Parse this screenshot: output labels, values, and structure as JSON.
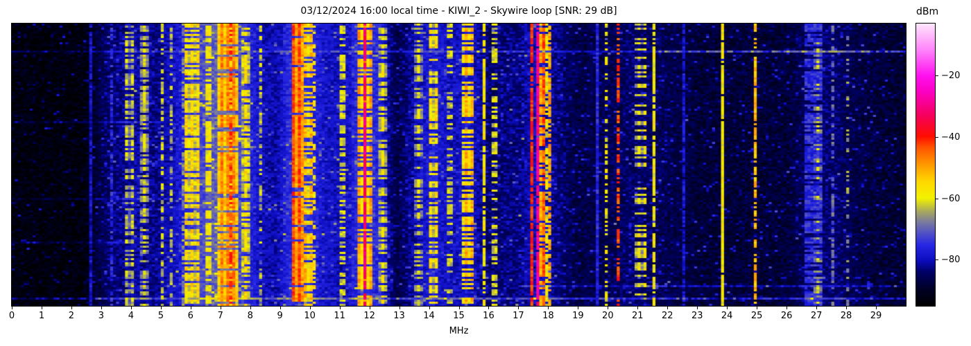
{
  "title": "03/12/2024 16:00 local time - KIWI_2 - Skywire loop [SNR: 29 dB]",
  "chart_data": {
    "type": "heatmap",
    "subtype": "waterfall-spectrogram",
    "title": "03/12/2024 16:00 local time - KIWI_2 - Skywire loop [SNR: 29 dB]",
    "xlabel": "MHz",
    "ylabel": "",
    "x_range": [
      0,
      30
    ],
    "x_ticks": [
      0,
      1,
      2,
      3,
      4,
      5,
      6,
      7,
      8,
      9,
      10,
      11,
      12,
      13,
      14,
      15,
      16,
      17,
      18,
      19,
      20,
      21,
      22,
      23,
      24,
      25,
      26,
      27,
      28,
      29
    ],
    "y_axis_note": "time (waterfall rows, unlabeled)",
    "grid": false,
    "legend": "none",
    "colorbar": {
      "label": "dBm",
      "ticks": [
        {
          "label": "−20",
          "value": -20
        },
        {
          "label": "−40",
          "value": -40
        },
        {
          "label": "−60",
          "value": -60
        },
        {
          "label": "−80",
          "value": -80
        }
      ],
      "range": [
        -95,
        -3
      ],
      "stops": [
        [
          0.0,
          "#000000"
        ],
        [
          0.06,
          "#000026"
        ],
        [
          0.12,
          "#000066"
        ],
        [
          0.163,
          "#0d0dc0"
        ],
        [
          0.215,
          "#2626e4"
        ],
        [
          0.26,
          "#5353c4"
        ],
        [
          0.3,
          "#7e7e9a"
        ],
        [
          0.335,
          "#a8a85e"
        ],
        [
          0.36,
          "#cfcf2a"
        ],
        [
          0.382,
          "#f2f200"
        ],
        [
          0.44,
          "#ffd800"
        ],
        [
          0.5,
          "#ff9900"
        ],
        [
          0.56,
          "#ff5500"
        ],
        [
          0.6,
          "#ff0d00"
        ],
        [
          0.68,
          "#f50063"
        ],
        [
          0.76,
          "#fb00c4"
        ],
        [
          0.815,
          "#ff10f0"
        ],
        [
          0.9,
          "#ff7cfa"
        ],
        [
          1.0,
          "#ffe6fc"
        ]
      ]
    },
    "noise_floor_anchors_mhz_dbm": [
      [
        0.0,
        -93
      ],
      [
        2.4,
        -93
      ],
      [
        2.7,
        -90
      ],
      [
        3.1,
        -85
      ],
      [
        3.6,
        -83
      ],
      [
        4.1,
        -81
      ],
      [
        4.8,
        -83
      ],
      [
        5.5,
        -79
      ],
      [
        6.0,
        -74
      ],
      [
        6.8,
        -70
      ],
      [
        7.3,
        -69
      ],
      [
        7.8,
        -74
      ],
      [
        8.4,
        -80
      ],
      [
        8.9,
        -81
      ],
      [
        9.3,
        -75
      ],
      [
        9.9,
        -74
      ],
      [
        10.5,
        -79
      ],
      [
        11.2,
        -80
      ],
      [
        11.8,
        -73
      ],
      [
        12.4,
        -77
      ],
      [
        12.9,
        -87
      ],
      [
        13.5,
        -81
      ],
      [
        14.1,
        -77
      ],
      [
        14.8,
        -80
      ],
      [
        15.3,
        -78
      ],
      [
        16.0,
        -84
      ],
      [
        17.0,
        -83
      ],
      [
        17.7,
        -79
      ],
      [
        18.3,
        -83
      ],
      [
        19.0,
        -87
      ],
      [
        20.0,
        -86
      ],
      [
        21.0,
        -84
      ],
      [
        22.0,
        -86
      ],
      [
        23.0,
        -88
      ],
      [
        24.5,
        -88
      ],
      [
        26.0,
        -88
      ],
      [
        27.0,
        -83
      ],
      [
        27.6,
        -84
      ],
      [
        28.5,
        -87
      ],
      [
        30.0,
        -89
      ]
    ],
    "signals_f_bw_dbm_duty_striped": [
      [
        2.62,
        0.05,
        -79,
        0.95,
        0
      ],
      [
        3.35,
        0.07,
        -76,
        0.7,
        0
      ],
      [
        3.95,
        0.22,
        -62,
        0.65,
        1
      ],
      [
        4.45,
        0.35,
        -60,
        0.65,
        1
      ],
      [
        5.05,
        0.1,
        -63,
        0.5,
        0
      ],
      [
        5.32,
        0.1,
        -64,
        0.5,
        0
      ],
      [
        5.75,
        0.15,
        -60,
        0.6,
        1
      ],
      [
        6.05,
        0.55,
        -55,
        0.8,
        1
      ],
      [
        6.6,
        0.15,
        -58,
        0.6,
        0
      ],
      [
        7.25,
        0.6,
        -47,
        0.85,
        1
      ],
      [
        7.38,
        0.08,
        -42,
        0.7,
        0
      ],
      [
        7.85,
        0.35,
        -56,
        0.7,
        1
      ],
      [
        8.33,
        0.08,
        -63,
        0.4,
        0
      ],
      [
        9.6,
        0.4,
        -43,
        0.9,
        1
      ],
      [
        9.5,
        0.05,
        -31,
        0.85,
        0
      ],
      [
        9.95,
        0.22,
        -52,
        0.7,
        1
      ],
      [
        10.15,
        0.12,
        -56,
        0.55,
        0
      ],
      [
        11.1,
        0.12,
        -61,
        0.5,
        0
      ],
      [
        11.85,
        0.45,
        -50,
        0.8,
        1
      ],
      [
        11.88,
        0.05,
        -32,
        0.85,
        0
      ],
      [
        12.45,
        0.25,
        -58,
        0.6,
        1
      ],
      [
        13.65,
        0.3,
        -60,
        0.55,
        1
      ],
      [
        14.18,
        0.3,
        -56,
        0.6,
        1
      ],
      [
        14.7,
        0.1,
        -62,
        0.4,
        0
      ],
      [
        15.3,
        0.35,
        -51,
        0.6,
        1
      ],
      [
        15.85,
        0.06,
        -58,
        0.8,
        0
      ],
      [
        16.2,
        0.08,
        -61,
        0.5,
        0
      ],
      [
        17.48,
        0.1,
        -41,
        0.9,
        0
      ],
      [
        17.62,
        0.05,
        -29,
        0.9,
        0
      ],
      [
        17.78,
        0.12,
        -44,
        0.8,
        1
      ],
      [
        17.97,
        0.12,
        -53,
        0.7,
        1
      ],
      [
        18.08,
        0.06,
        -50,
        0.7,
        0
      ],
      [
        19.0,
        0.04,
        -77,
        1.0,
        0
      ],
      [
        19.65,
        0.04,
        -76,
        1.0,
        0
      ],
      [
        19.97,
        0.05,
        -59,
        0.5,
        0
      ],
      [
        20.32,
        0.05,
        -43,
        0.55,
        0
      ],
      [
        21.1,
        0.35,
        -58,
        0.35,
        1
      ],
      [
        21.55,
        0.05,
        -58,
        0.85,
        0
      ],
      [
        22.55,
        0.04,
        -78,
        0.9,
        0
      ],
      [
        23.85,
        0.05,
        -58,
        0.95,
        0
      ],
      [
        24.95,
        0.07,
        -52,
        0.75,
        0
      ],
      [
        26.3,
        0.05,
        -76,
        0.95,
        0
      ],
      [
        26.9,
        0.55,
        -75,
        0.7,
        0
      ],
      [
        27.05,
        0.35,
        -62,
        0.3,
        1
      ],
      [
        27.55,
        0.08,
        -70,
        0.5,
        0
      ],
      [
        28.05,
        0.15,
        -66,
        0.3,
        1
      ],
      [
        28.9,
        0.04,
        -78,
        0.8,
        0
      ]
    ],
    "time_events_rowfrac_f0_f1_boostdb": [
      [
        0.093,
        0.0,
        30.0,
        6
      ],
      [
        0.093,
        21.5,
        30.0,
        9
      ],
      [
        0.35,
        0.0,
        5.0,
        5
      ],
      [
        0.62,
        0.0,
        5.0,
        5
      ],
      [
        0.78,
        0.0,
        4.0,
        5
      ],
      [
        0.93,
        17.0,
        30.0,
        7
      ],
      [
        0.975,
        0.0,
        30.0,
        10
      ]
    ],
    "render": {
      "bins": 300,
      "rows": 136,
      "bin_mhz": 0.1,
      "seed": 42,
      "jitter_db": 6,
      "speckle_prob": 0.15,
      "speckle_db": 16
    }
  }
}
